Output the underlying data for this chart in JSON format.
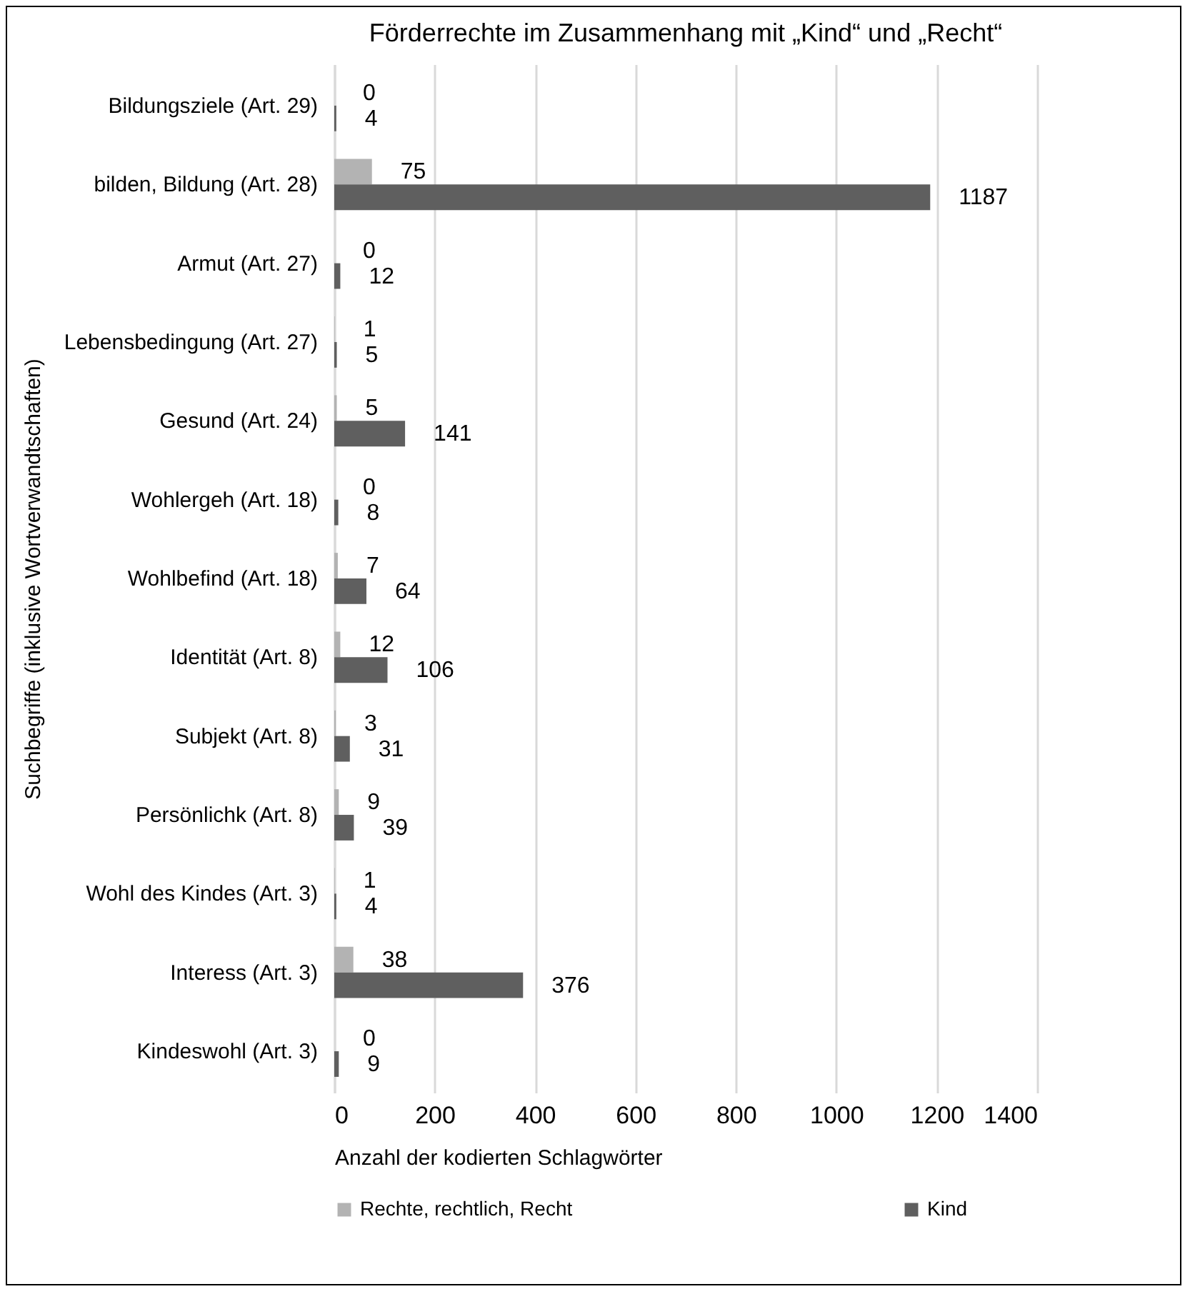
{
  "chart_data": {
    "type": "bar",
    "orientation": "horizontal",
    "title": "Förderrechte im Zusammenhang mit „Kind“ und „Recht“",
    "xlabel": "Anzahl der kodierten Schlagwörter",
    "ylabel": "Suchbegriffe (inklusive Wortverwandtschaften)",
    "categories": [
      "Bildungsziele (Art. 29)",
      "bilden, Bildung (Art. 28)",
      "Armut (Art. 27)",
      "Lebensbedingung (Art. 27)",
      "Gesund (Art. 24)",
      "Wohlergeh (Art. 18)",
      "Wohlbefind (Art. 18)",
      "Identität (Art. 8)",
      "Subjekt (Art. 8)",
      "Persönlichk (Art. 8)",
      "Wohl des Kindes (Art. 3)",
      "Interess (Art. 3)",
      "Kindeswohl (Art. 3)"
    ],
    "series": [
      {
        "name": "Rechte, rechtlich, Recht",
        "color": "#b3b3b3",
        "values": [
          0,
          75,
          0,
          1,
          5,
          0,
          7,
          12,
          3,
          9,
          1,
          38,
          0
        ]
      },
      {
        "name": "Kind",
        "color": "#5f5f5f",
        "values": [
          4,
          1187,
          12,
          5,
          141,
          8,
          64,
          106,
          31,
          39,
          4,
          376,
          9
        ]
      }
    ],
    "xlim": [
      0,
      1400
    ],
    "xticks": [
      0,
      200,
      400,
      600,
      800,
      1000,
      1200,
      1400
    ],
    "grid": "x",
    "legend": "bottom",
    "data_labels": true
  }
}
